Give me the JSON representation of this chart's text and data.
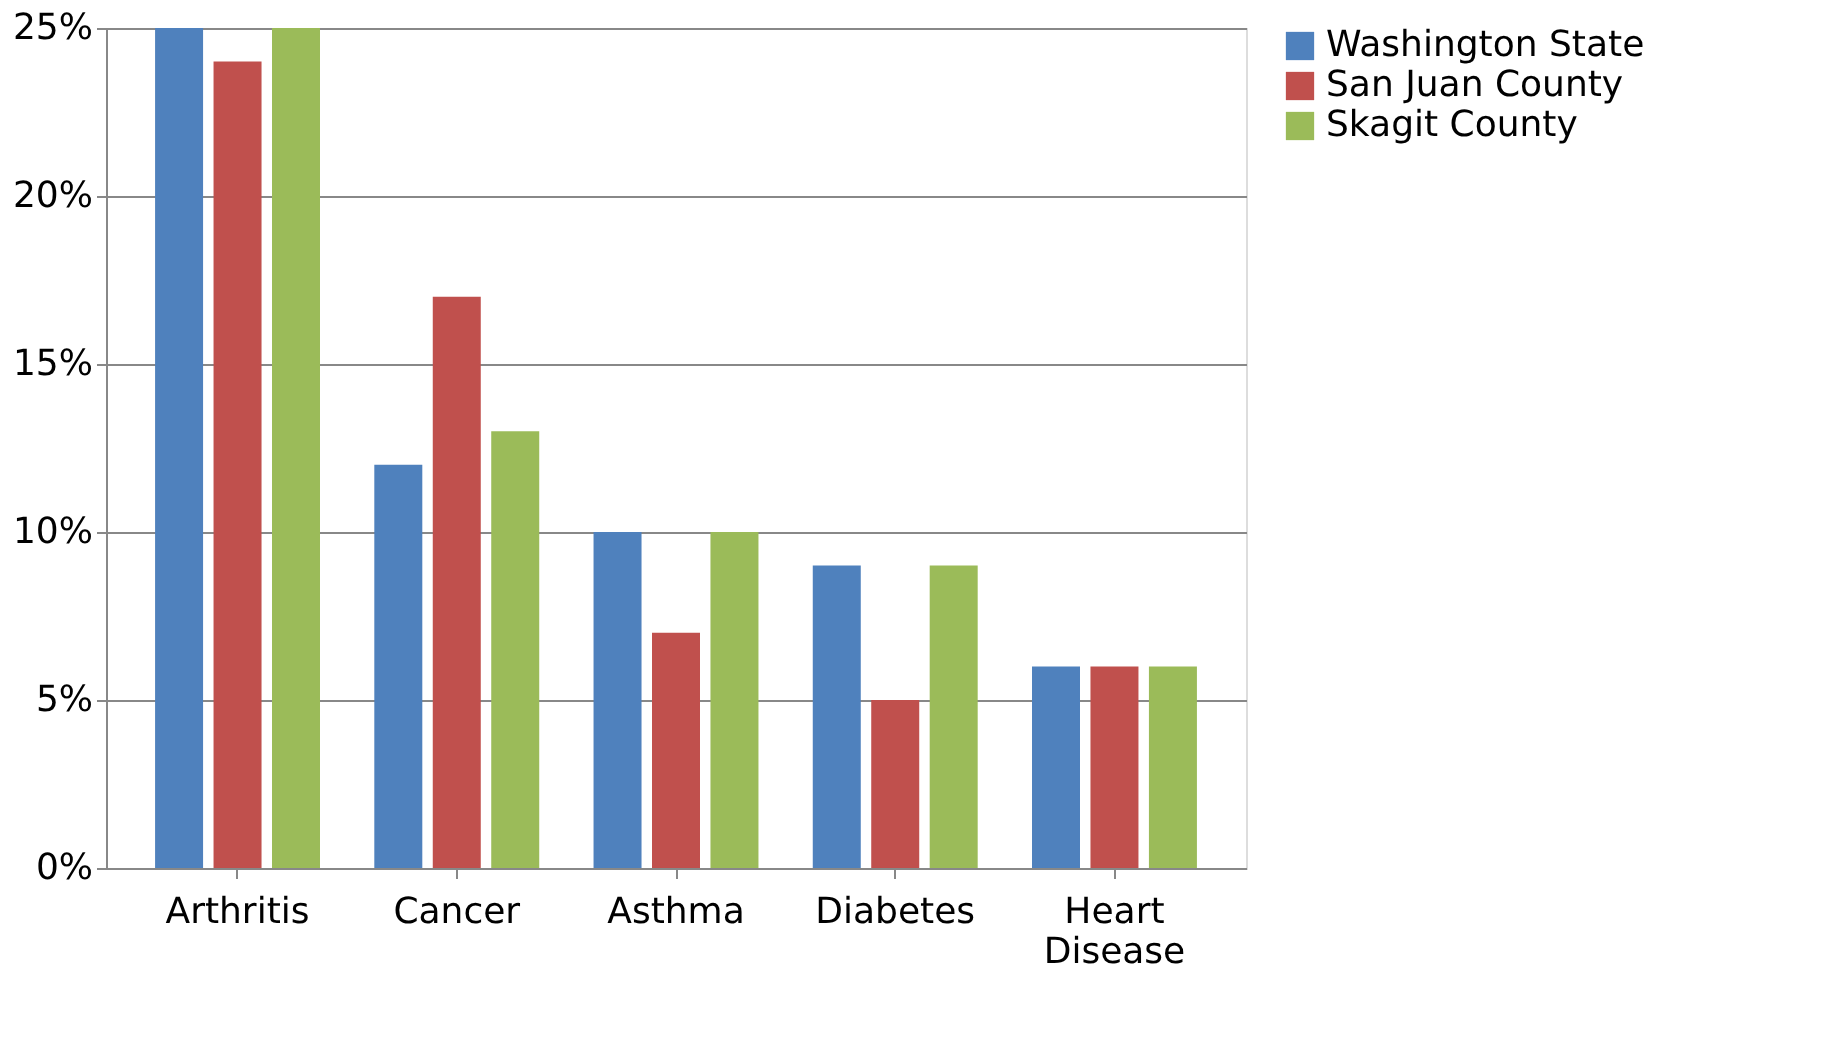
{
  "chart_data": {
    "type": "bar",
    "categories": [
      "Arthritis",
      "Cancer",
      "Asthma",
      "Diabetes",
      "Heart Disease"
    ],
    "series": [
      {
        "name": "Washington State",
        "color": "#4f81bd",
        "values": [
          25,
          12,
          10,
          9,
          6
        ]
      },
      {
        "name": "San Juan County",
        "color": "#c0504d",
        "values": [
          24,
          17,
          7,
          5,
          6
        ]
      },
      {
        "name": "Skagit County",
        "color": "#9bbb59",
        "values": [
          25,
          13,
          10,
          9,
          6
        ]
      }
    ],
    "ylim": [
      0,
      25
    ],
    "yticks": [
      {
        "value": 0,
        "label": "0%"
      },
      {
        "value": 5,
        "label": "5%"
      },
      {
        "value": 10,
        "label": "10%"
      },
      {
        "value": 15,
        "label": "15%"
      },
      {
        "value": 20,
        "label": "20%"
      },
      {
        "value": 25,
        "label": "25%"
      }
    ],
    "grid": "y",
    "legend": "right"
  }
}
